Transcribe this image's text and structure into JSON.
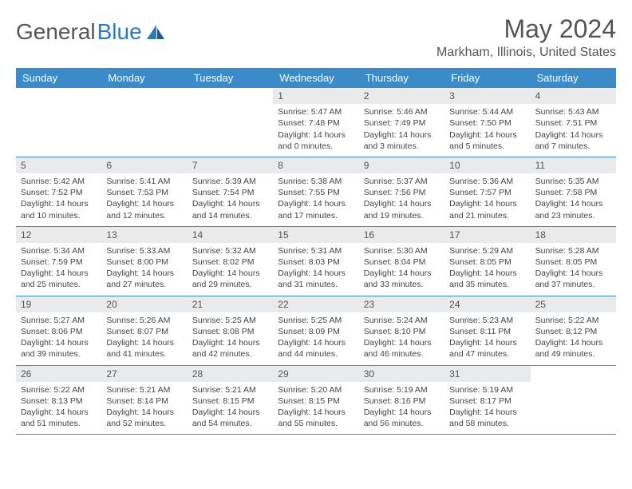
{
  "brand": {
    "part1": "General",
    "part2": "Blue"
  },
  "title": "May 2024",
  "location": "Markham, Illinois, United States",
  "colors": {
    "header_bg": "#3b8bc9",
    "header_text": "#ffffff",
    "daynum_bg": "#e8eaec",
    "text": "#444444",
    "rule": "#3b8bc9"
  },
  "day_names": [
    "Sunday",
    "Monday",
    "Tuesday",
    "Wednesday",
    "Thursday",
    "Friday",
    "Saturday"
  ],
  "weeks": [
    [
      {
        "day": "",
        "sunrise": "",
        "sunset": "",
        "daylight": ""
      },
      {
        "day": "",
        "sunrise": "",
        "sunset": "",
        "daylight": ""
      },
      {
        "day": "",
        "sunrise": "",
        "sunset": "",
        "daylight": ""
      },
      {
        "day": "1",
        "sunrise": "Sunrise: 5:47 AM",
        "sunset": "Sunset: 7:48 PM",
        "daylight": "Daylight: 14 hours and 0 minutes."
      },
      {
        "day": "2",
        "sunrise": "Sunrise: 5:46 AM",
        "sunset": "Sunset: 7:49 PM",
        "daylight": "Daylight: 14 hours and 3 minutes."
      },
      {
        "day": "3",
        "sunrise": "Sunrise: 5:44 AM",
        "sunset": "Sunset: 7:50 PM",
        "daylight": "Daylight: 14 hours and 5 minutes."
      },
      {
        "day": "4",
        "sunrise": "Sunrise: 5:43 AM",
        "sunset": "Sunset: 7:51 PM",
        "daylight": "Daylight: 14 hours and 7 minutes."
      }
    ],
    [
      {
        "day": "5",
        "sunrise": "Sunrise: 5:42 AM",
        "sunset": "Sunset: 7:52 PM",
        "daylight": "Daylight: 14 hours and 10 minutes."
      },
      {
        "day": "6",
        "sunrise": "Sunrise: 5:41 AM",
        "sunset": "Sunset: 7:53 PM",
        "daylight": "Daylight: 14 hours and 12 minutes."
      },
      {
        "day": "7",
        "sunrise": "Sunrise: 5:39 AM",
        "sunset": "Sunset: 7:54 PM",
        "daylight": "Daylight: 14 hours and 14 minutes."
      },
      {
        "day": "8",
        "sunrise": "Sunrise: 5:38 AM",
        "sunset": "Sunset: 7:55 PM",
        "daylight": "Daylight: 14 hours and 17 minutes."
      },
      {
        "day": "9",
        "sunrise": "Sunrise: 5:37 AM",
        "sunset": "Sunset: 7:56 PM",
        "daylight": "Daylight: 14 hours and 19 minutes."
      },
      {
        "day": "10",
        "sunrise": "Sunrise: 5:36 AM",
        "sunset": "Sunset: 7:57 PM",
        "daylight": "Daylight: 14 hours and 21 minutes."
      },
      {
        "day": "11",
        "sunrise": "Sunrise: 5:35 AM",
        "sunset": "Sunset: 7:58 PM",
        "daylight": "Daylight: 14 hours and 23 minutes."
      }
    ],
    [
      {
        "day": "12",
        "sunrise": "Sunrise: 5:34 AM",
        "sunset": "Sunset: 7:59 PM",
        "daylight": "Daylight: 14 hours and 25 minutes."
      },
      {
        "day": "13",
        "sunrise": "Sunrise: 5:33 AM",
        "sunset": "Sunset: 8:00 PM",
        "daylight": "Daylight: 14 hours and 27 minutes."
      },
      {
        "day": "14",
        "sunrise": "Sunrise: 5:32 AM",
        "sunset": "Sunset: 8:02 PM",
        "daylight": "Daylight: 14 hours and 29 minutes."
      },
      {
        "day": "15",
        "sunrise": "Sunrise: 5:31 AM",
        "sunset": "Sunset: 8:03 PM",
        "daylight": "Daylight: 14 hours and 31 minutes."
      },
      {
        "day": "16",
        "sunrise": "Sunrise: 5:30 AM",
        "sunset": "Sunset: 8:04 PM",
        "daylight": "Daylight: 14 hours and 33 minutes."
      },
      {
        "day": "17",
        "sunrise": "Sunrise: 5:29 AM",
        "sunset": "Sunset: 8:05 PM",
        "daylight": "Daylight: 14 hours and 35 minutes."
      },
      {
        "day": "18",
        "sunrise": "Sunrise: 5:28 AM",
        "sunset": "Sunset: 8:05 PM",
        "daylight": "Daylight: 14 hours and 37 minutes."
      }
    ],
    [
      {
        "day": "19",
        "sunrise": "Sunrise: 5:27 AM",
        "sunset": "Sunset: 8:06 PM",
        "daylight": "Daylight: 14 hours and 39 minutes."
      },
      {
        "day": "20",
        "sunrise": "Sunrise: 5:26 AM",
        "sunset": "Sunset: 8:07 PM",
        "daylight": "Daylight: 14 hours and 41 minutes."
      },
      {
        "day": "21",
        "sunrise": "Sunrise: 5:25 AM",
        "sunset": "Sunset: 8:08 PM",
        "daylight": "Daylight: 14 hours and 42 minutes."
      },
      {
        "day": "22",
        "sunrise": "Sunrise: 5:25 AM",
        "sunset": "Sunset: 8:09 PM",
        "daylight": "Daylight: 14 hours and 44 minutes."
      },
      {
        "day": "23",
        "sunrise": "Sunrise: 5:24 AM",
        "sunset": "Sunset: 8:10 PM",
        "daylight": "Daylight: 14 hours and 46 minutes."
      },
      {
        "day": "24",
        "sunrise": "Sunrise: 5:23 AM",
        "sunset": "Sunset: 8:11 PM",
        "daylight": "Daylight: 14 hours and 47 minutes."
      },
      {
        "day": "25",
        "sunrise": "Sunrise: 5:22 AM",
        "sunset": "Sunset: 8:12 PM",
        "daylight": "Daylight: 14 hours and 49 minutes."
      }
    ],
    [
      {
        "day": "26",
        "sunrise": "Sunrise: 5:22 AM",
        "sunset": "Sunset: 8:13 PM",
        "daylight": "Daylight: 14 hours and 51 minutes."
      },
      {
        "day": "27",
        "sunrise": "Sunrise: 5:21 AM",
        "sunset": "Sunset: 8:14 PM",
        "daylight": "Daylight: 14 hours and 52 minutes."
      },
      {
        "day": "28",
        "sunrise": "Sunrise: 5:21 AM",
        "sunset": "Sunset: 8:15 PM",
        "daylight": "Daylight: 14 hours and 54 minutes."
      },
      {
        "day": "29",
        "sunrise": "Sunrise: 5:20 AM",
        "sunset": "Sunset: 8:15 PM",
        "daylight": "Daylight: 14 hours and 55 minutes."
      },
      {
        "day": "30",
        "sunrise": "Sunrise: 5:19 AM",
        "sunset": "Sunset: 8:16 PM",
        "daylight": "Daylight: 14 hours and 56 minutes."
      },
      {
        "day": "31",
        "sunrise": "Sunrise: 5:19 AM",
        "sunset": "Sunset: 8:17 PM",
        "daylight": "Daylight: 14 hours and 58 minutes."
      },
      {
        "day": "",
        "sunrise": "",
        "sunset": "",
        "daylight": ""
      }
    ]
  ]
}
